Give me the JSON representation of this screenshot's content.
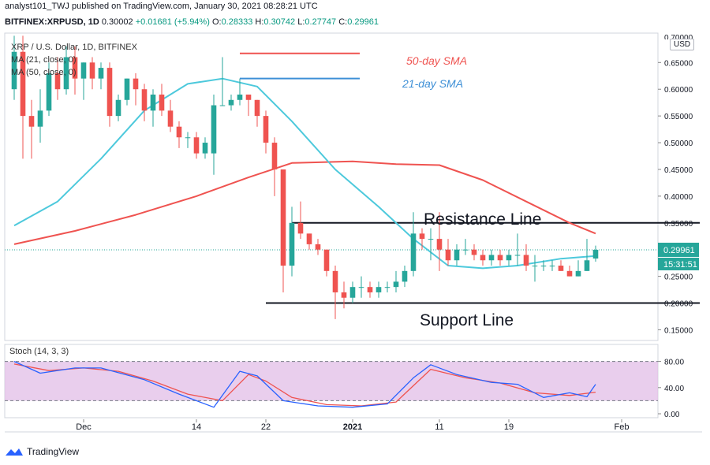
{
  "header": {
    "publish_line": "analyst101_TWJ published on TradingView.com, January 30, 2021 08:28:21 UTC",
    "symbol": "BITFINEX:XRPUSD, 1D",
    "price": "0.30002",
    "change": "+0.01681 (+5.94%)",
    "o_label": "O:",
    "o": "0.28333",
    "h_label": "H:",
    "h": "0.30742",
    "l_label": "L:",
    "l": "0.27747",
    "c_label": "C:",
    "c": "0.29961"
  },
  "legend": {
    "title": "XRP / U.S. Dollar, 1D, BITFINEX",
    "ma21": "MA (21, close, 0)",
    "ma50": "MA (50, close, 0)",
    "stoch": "Stoch (14, 3, 3)"
  },
  "annotations": {
    "sma50": "50-day SMA",
    "sma21": "21-day SMA",
    "resistance": "Resistance Line",
    "support": "Support Line"
  },
  "axis": {
    "currency": "USD",
    "last_price": "0.29961",
    "countdown": "15:31:51",
    "top_clipped_tick": "0.70000"
  },
  "footer": {
    "brand": "TradingView"
  },
  "colors": {
    "up": "#26a69a",
    "down": "#ef5350",
    "ma21": "#4dc9dc",
    "ma50": "#ef5350",
    "stoch_k": "#2962ff",
    "stoch_d": "#ef5350",
    "stoch_band": "#e1bee7"
  },
  "chart_data": [
    {
      "type": "candlestick",
      "title": "XRP / U.S. Dollar, 1D, BITFINEX",
      "ylim": [
        0.13,
        0.705
      ],
      "y_ticks": [
        "0.15000",
        "0.20000",
        "0.25000",
        "0.30000",
        "0.35000",
        "0.40000",
        "0.45000",
        "0.50000",
        "0.55000",
        "0.60000",
        "0.65000"
      ],
      "x_ticks": [
        {
          "label": "Dec",
          "date": "2020-12-01"
        },
        {
          "label": "14",
          "date": "2020-12-14"
        },
        {
          "label": "22",
          "date": "2020-12-22"
        },
        {
          "label": "2021",
          "date": "2021-01-01"
        },
        {
          "label": "11",
          "date": "2021-01-11"
        },
        {
          "label": "19",
          "date": "2021-01-19"
        },
        {
          "label": "Feb",
          "date": "2021-02-01"
        }
      ],
      "x_range": [
        "2020-11-23",
        "2021-02-10"
      ],
      "candles": [
        {
          "d": "2020-11-23",
          "o": 0.6,
          "h": 0.7,
          "l": 0.58,
          "c": 0.67
        },
        {
          "d": "2020-11-24",
          "o": 0.67,
          "h": 0.7,
          "l": 0.47,
          "c": 0.55
        },
        {
          "d": "2020-11-25",
          "o": 0.55,
          "h": 0.58,
          "l": 0.47,
          "c": 0.53
        },
        {
          "d": "2020-11-26",
          "o": 0.53,
          "h": 0.6,
          "l": 0.5,
          "c": 0.56
        },
        {
          "d": "2020-11-27",
          "o": 0.56,
          "h": 0.65,
          "l": 0.55,
          "c": 0.63
        },
        {
          "d": "2020-11-28",
          "o": 0.63,
          "h": 0.66,
          "l": 0.58,
          "c": 0.6
        },
        {
          "d": "2020-11-29",
          "o": 0.6,
          "h": 0.68,
          "l": 0.59,
          "c": 0.66
        },
        {
          "d": "2020-11-30",
          "o": 0.66,
          "h": 0.68,
          "l": 0.59,
          "c": 0.62
        },
        {
          "d": "2020-12-01",
          "o": 0.62,
          "h": 0.65,
          "l": 0.58,
          "c": 0.65
        },
        {
          "d": "2020-12-02",
          "o": 0.65,
          "h": 0.66,
          "l": 0.6,
          "c": 0.62
        },
        {
          "d": "2020-12-03",
          "o": 0.62,
          "h": 0.65,
          "l": 0.6,
          "c": 0.64
        },
        {
          "d": "2020-12-04",
          "o": 0.64,
          "h": 0.65,
          "l": 0.53,
          "c": 0.55
        },
        {
          "d": "2020-12-05",
          "o": 0.55,
          "h": 0.59,
          "l": 0.54,
          "c": 0.58
        },
        {
          "d": "2020-12-06",
          "o": 0.58,
          "h": 0.62,
          "l": 0.57,
          "c": 0.62
        },
        {
          "d": "2020-12-07",
          "o": 0.62,
          "h": 0.63,
          "l": 0.57,
          "c": 0.6
        },
        {
          "d": "2020-12-08",
          "o": 0.6,
          "h": 0.61,
          "l": 0.54,
          "c": 0.56
        },
        {
          "d": "2020-12-09",
          "o": 0.56,
          "h": 0.6,
          "l": 0.53,
          "c": 0.59
        },
        {
          "d": "2020-12-10",
          "o": 0.59,
          "h": 0.61,
          "l": 0.55,
          "c": 0.56
        },
        {
          "d": "2020-12-11",
          "o": 0.56,
          "h": 0.58,
          "l": 0.52,
          "c": 0.53
        },
        {
          "d": "2020-12-12",
          "o": 0.53,
          "h": 0.54,
          "l": 0.49,
          "c": 0.51
        },
        {
          "d": "2020-12-13",
          "o": 0.51,
          "h": 0.52,
          "l": 0.49,
          "c": 0.51
        },
        {
          "d": "2020-12-14",
          "o": 0.51,
          "h": 0.52,
          "l": 0.47,
          "c": 0.48
        },
        {
          "d": "2020-12-15",
          "o": 0.48,
          "h": 0.51,
          "l": 0.47,
          "c": 0.5
        },
        {
          "d": "2020-12-16",
          "o": 0.48,
          "h": 0.59,
          "l": 0.44,
          "c": 0.57
        },
        {
          "d": "2020-12-17",
          "o": 0.57,
          "h": 0.66,
          "l": 0.57,
          "c": 0.57
        },
        {
          "d": "2020-12-18",
          "o": 0.57,
          "h": 0.59,
          "l": 0.56,
          "c": 0.58
        },
        {
          "d": "2020-12-19",
          "o": 0.58,
          "h": 0.62,
          "l": 0.57,
          "c": 0.59
        },
        {
          "d": "2020-12-20",
          "o": 0.59,
          "h": 0.59,
          "l": 0.55,
          "c": 0.58
        },
        {
          "d": "2020-12-21",
          "o": 0.58,
          "h": 0.58,
          "l": 0.53,
          "c": 0.55
        },
        {
          "d": "2020-12-22",
          "o": 0.55,
          "h": 0.56,
          "l": 0.48,
          "c": 0.5
        },
        {
          "d": "2020-12-23",
          "o": 0.5,
          "h": 0.51,
          "l": 0.4,
          "c": 0.45
        },
        {
          "d": "2020-12-24",
          "o": 0.45,
          "h": 0.45,
          "l": 0.22,
          "c": 0.27
        },
        {
          "d": "2020-12-25",
          "o": 0.27,
          "h": 0.38,
          "l": 0.25,
          "c": 0.35
        },
        {
          "d": "2020-12-26",
          "o": 0.35,
          "h": 0.39,
          "l": 0.32,
          "c": 0.33
        },
        {
          "d": "2020-12-27",
          "o": 0.33,
          "h": 0.33,
          "l": 0.3,
          "c": 0.31
        },
        {
          "d": "2020-12-28",
          "o": 0.31,
          "h": 0.32,
          "l": 0.29,
          "c": 0.3
        },
        {
          "d": "2020-12-29",
          "o": 0.3,
          "h": 0.3,
          "l": 0.25,
          "c": 0.26
        },
        {
          "d": "2020-12-30",
          "o": 0.26,
          "h": 0.27,
          "l": 0.17,
          "c": 0.22
        },
        {
          "d": "2020-12-31",
          "o": 0.22,
          "h": 0.24,
          "l": 0.19,
          "c": 0.21
        },
        {
          "d": "2021-01-01",
          "o": 0.21,
          "h": 0.24,
          "l": 0.2,
          "c": 0.23
        },
        {
          "d": "2021-01-02",
          "o": 0.23,
          "h": 0.25,
          "l": 0.21,
          "c": 0.23
        },
        {
          "d": "2021-01-03",
          "o": 0.23,
          "h": 0.24,
          "l": 0.21,
          "c": 0.22
        },
        {
          "d": "2021-01-04",
          "o": 0.22,
          "h": 0.24,
          "l": 0.21,
          "c": 0.23
        },
        {
          "d": "2021-01-05",
          "o": 0.23,
          "h": 0.24,
          "l": 0.22,
          "c": 0.23
        },
        {
          "d": "2021-01-06",
          "o": 0.23,
          "h": 0.26,
          "l": 0.22,
          "c": 0.24
        },
        {
          "d": "2021-01-07",
          "o": 0.24,
          "h": 0.27,
          "l": 0.23,
          "c": 0.26
        },
        {
          "d": "2021-01-08",
          "o": 0.26,
          "h": 0.37,
          "l": 0.25,
          "c": 0.33
        },
        {
          "d": "2021-01-09",
          "o": 0.33,
          "h": 0.34,
          "l": 0.3,
          "c": 0.32
        },
        {
          "d": "2021-01-10",
          "o": 0.32,
          "h": 0.34,
          "l": 0.28,
          "c": 0.32
        },
        {
          "d": "2021-01-11",
          "o": 0.32,
          "h": 0.37,
          "l": 0.26,
          "c": 0.3
        },
        {
          "d": "2021-01-12",
          "o": 0.3,
          "h": 0.32,
          "l": 0.27,
          "c": 0.28
        },
        {
          "d": "2021-01-13",
          "o": 0.28,
          "h": 0.31,
          "l": 0.27,
          "c": 0.3
        },
        {
          "d": "2021-01-14",
          "o": 0.3,
          "h": 0.32,
          "l": 0.29,
          "c": 0.3
        },
        {
          "d": "2021-01-15",
          "o": 0.3,
          "h": 0.31,
          "l": 0.28,
          "c": 0.29
        },
        {
          "d": "2021-01-16",
          "o": 0.29,
          "h": 0.3,
          "l": 0.27,
          "c": 0.28
        },
        {
          "d": "2021-01-17",
          "o": 0.28,
          "h": 0.3,
          "l": 0.27,
          "c": 0.29
        },
        {
          "d": "2021-01-18",
          "o": 0.29,
          "h": 0.3,
          "l": 0.27,
          "c": 0.28
        },
        {
          "d": "2021-01-19",
          "o": 0.28,
          "h": 0.3,
          "l": 0.27,
          "c": 0.29
        },
        {
          "d": "2021-01-20",
          "o": 0.29,
          "h": 0.33,
          "l": 0.27,
          "c": 0.29
        },
        {
          "d": "2021-01-21",
          "o": 0.29,
          "h": 0.31,
          "l": 0.26,
          "c": 0.27
        },
        {
          "d": "2021-01-22",
          "o": 0.27,
          "h": 0.29,
          "l": 0.24,
          "c": 0.27
        },
        {
          "d": "2021-01-23",
          "o": 0.27,
          "h": 0.28,
          "l": 0.26,
          "c": 0.27
        },
        {
          "d": "2021-01-24",
          "o": 0.27,
          "h": 0.28,
          "l": 0.26,
          "c": 0.27
        },
        {
          "d": "2021-01-25",
          "o": 0.27,
          "h": 0.28,
          "l": 0.26,
          "c": 0.26
        },
        {
          "d": "2021-01-26",
          "o": 0.26,
          "h": 0.27,
          "l": 0.25,
          "c": 0.25
        },
        {
          "d": "2021-01-27",
          "o": 0.25,
          "h": 0.28,
          "l": 0.25,
          "c": 0.26
        },
        {
          "d": "2021-01-28",
          "o": 0.26,
          "h": 0.32,
          "l": 0.26,
          "c": 0.28
        },
        {
          "d": "2021-01-29",
          "o": 0.28333,
          "h": 0.30742,
          "l": 0.27747,
          "c": 0.29961
        }
      ],
      "ma21": [
        {
          "d": "2020-11-23",
          "v": 0.345
        },
        {
          "d": "2020-11-28",
          "v": 0.39
        },
        {
          "d": "2020-12-03",
          "v": 0.47
        },
        {
          "d": "2020-12-08",
          "v": 0.56
        },
        {
          "d": "2020-12-13",
          "v": 0.61
        },
        {
          "d": "2020-12-17",
          "v": 0.62
        },
        {
          "d": "2020-12-21",
          "v": 0.605
        },
        {
          "d": "2020-12-25",
          "v": 0.54
        },
        {
          "d": "2020-12-30",
          "v": 0.45
        },
        {
          "d": "2021-01-04",
          "v": 0.38
        },
        {
          "d": "2021-01-08",
          "v": 0.32
        },
        {
          "d": "2021-01-12",
          "v": 0.27
        },
        {
          "d": "2021-01-16",
          "v": 0.265
        },
        {
          "d": "2021-01-20",
          "v": 0.27
        },
        {
          "d": "2021-01-25",
          "v": 0.283
        },
        {
          "d": "2021-01-29",
          "v": 0.288
        }
      ],
      "ma50": [
        {
          "d": "2020-11-23",
          "v": 0.31
        },
        {
          "d": "2020-11-30",
          "v": 0.335
        },
        {
          "d": "2020-12-07",
          "v": 0.365
        },
        {
          "d": "2020-12-14",
          "v": 0.4
        },
        {
          "d": "2020-12-20",
          "v": 0.435
        },
        {
          "d": "2020-12-25",
          "v": 0.462
        },
        {
          "d": "2021-01-01",
          "v": 0.465
        },
        {
          "d": "2021-01-06",
          "v": 0.46
        },
        {
          "d": "2021-01-11",
          "v": 0.458
        },
        {
          "d": "2021-01-16",
          "v": 0.43
        },
        {
          "d": "2021-01-21",
          "v": 0.39
        },
        {
          "d": "2021-01-26",
          "v": 0.35
        },
        {
          "d": "2021-01-29",
          "v": 0.33
        }
      ],
      "resistance_line": {
        "y": 0.35,
        "from": "2020-12-25",
        "to": "2021-02-10"
      },
      "support_line": {
        "y": 0.2,
        "from": "2020-12-22",
        "to": "2021-02-10"
      },
      "legend_key_lines": [
        {
          "series": "50-day SMA",
          "y": 0.667
        },
        {
          "series": "21-day SMA",
          "y": 0.62
        }
      ]
    },
    {
      "type": "line",
      "title": "Stoch (14, 3, 3)",
      "ylim": [
        0,
        100
      ],
      "y_ticks": [
        "0.00",
        "40.00",
        "80.00"
      ],
      "band": [
        20,
        80
      ],
      "series": [
        {
          "key": "k",
          "points": [
            {
              "d": "2020-11-23",
              "v": 80
            },
            {
              "d": "2020-11-26",
              "v": 62
            },
            {
              "d": "2020-11-30",
              "v": 70
            },
            {
              "d": "2020-12-03",
              "v": 70
            },
            {
              "d": "2020-12-08",
              "v": 52
            },
            {
              "d": "2020-12-12",
              "v": 30
            },
            {
              "d": "2020-12-16",
              "v": 10
            },
            {
              "d": "2020-12-19",
              "v": 65
            },
            {
              "d": "2020-12-21",
              "v": 58
            },
            {
              "d": "2020-12-24",
              "v": 20
            },
            {
              "d": "2020-12-28",
              "v": 12
            },
            {
              "d": "2021-01-01",
              "v": 10
            },
            {
              "d": "2021-01-05",
              "v": 15
            },
            {
              "d": "2021-01-08",
              "v": 55
            },
            {
              "d": "2021-01-10",
              "v": 75
            },
            {
              "d": "2021-01-13",
              "v": 60
            },
            {
              "d": "2021-01-17",
              "v": 48
            },
            {
              "d": "2021-01-20",
              "v": 45
            },
            {
              "d": "2021-01-23",
              "v": 25
            },
            {
              "d": "2021-01-26",
              "v": 32
            },
            {
              "d": "2021-01-28",
              "v": 26
            },
            {
              "d": "2021-01-29",
              "v": 45
            }
          ]
        },
        {
          "key": "d",
          "points": [
            {
              "d": "2020-11-23",
              "v": 76
            },
            {
              "d": "2020-11-27",
              "v": 66
            },
            {
              "d": "2020-12-01",
              "v": 70
            },
            {
              "d": "2020-12-05",
              "v": 65
            },
            {
              "d": "2020-12-09",
              "v": 50
            },
            {
              "d": "2020-12-13",
              "v": 30
            },
            {
              "d": "2020-12-17",
              "v": 20
            },
            {
              "d": "2020-12-20",
              "v": 60
            },
            {
              "d": "2020-12-22",
              "v": 50
            },
            {
              "d": "2020-12-25",
              "v": 25
            },
            {
              "d": "2020-12-29",
              "v": 14
            },
            {
              "d": "2021-01-02",
              "v": 12
            },
            {
              "d": "2021-01-06",
              "v": 18
            },
            {
              "d": "2021-01-10",
              "v": 68
            },
            {
              "d": "2021-01-14",
              "v": 55
            },
            {
              "d": "2021-01-18",
              "v": 47
            },
            {
              "d": "2021-01-22",
              "v": 32
            },
            {
              "d": "2021-01-26",
              "v": 28
            },
            {
              "d": "2021-01-29",
              "v": 33
            }
          ]
        }
      ]
    }
  ]
}
